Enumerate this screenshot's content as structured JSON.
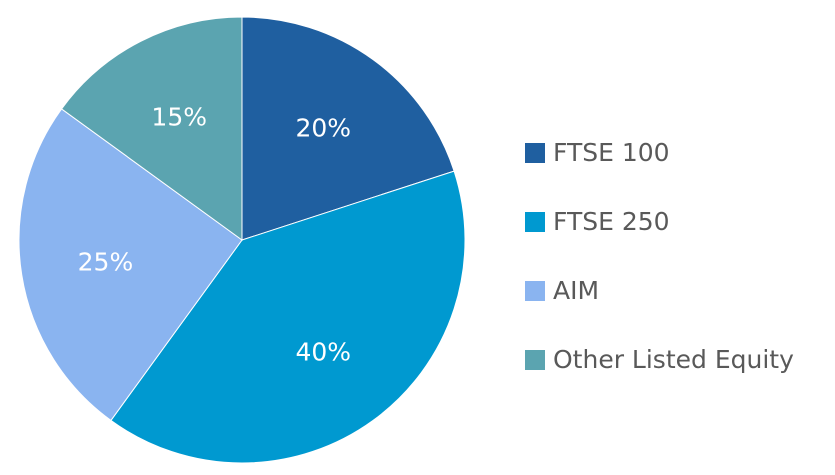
{
  "chart_data": {
    "type": "pie",
    "title": "",
    "categories": [
      "FTSE 100",
      "FTSE 250",
      "AIM",
      "Other Listed Equity"
    ],
    "values": [
      20,
      40,
      25,
      15
    ],
    "labels": [
      "20%",
      "40%",
      "25%",
      "15%"
    ],
    "colors": [
      "#1F5FA0",
      "#0099D0",
      "#8AB4F0",
      "#5BA4B0"
    ],
    "legend_position": "right"
  },
  "legend": {
    "items": [
      {
        "label": "FTSE 100",
        "color": "#1F5FA0"
      },
      {
        "label": "FTSE 250",
        "color": "#0099D0"
      },
      {
        "label": "AIM",
        "color": "#8AB4F0"
      },
      {
        "label": "Other Listed Equity",
        "color": "#5BA4B0"
      }
    ]
  }
}
